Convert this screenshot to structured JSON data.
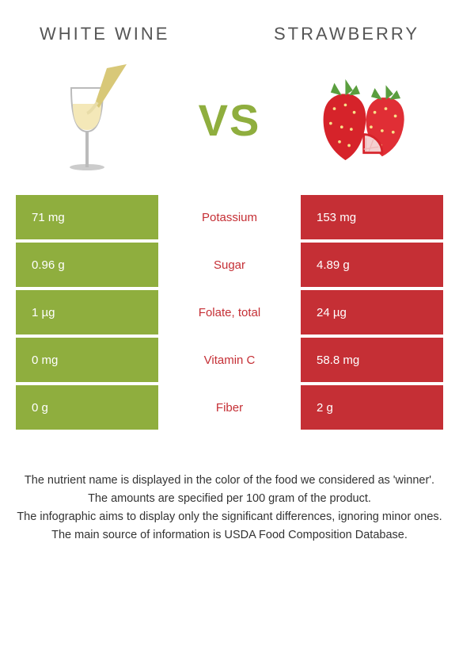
{
  "colors": {
    "left": "#8fae3e",
    "right": "#c52f35",
    "mid_winner_left": "#8fae3e",
    "mid_winner_right": "#c52f35",
    "text": "#333333",
    "header_text": "#555555",
    "white": "#ffffff"
  },
  "header": {
    "left_title": "WHITE WINE",
    "right_title": "STRAWBERRY"
  },
  "vs_label": "VS",
  "vs_color": "#8fae3e",
  "rows": [
    {
      "left": "71 mg",
      "label": "Potassium",
      "right": "153 mg",
      "winner": "right"
    },
    {
      "left": "0.96 g",
      "label": "Sugar",
      "right": "4.89 g",
      "winner": "right"
    },
    {
      "left": "1 µg",
      "label": "Folate, total",
      "right": "24 µg",
      "winner": "right"
    },
    {
      "left": "0 mg",
      "label": "Vitamin C",
      "right": "58.8 mg",
      "winner": "right"
    },
    {
      "left": "0 g",
      "label": "Fiber",
      "right": "2 g",
      "winner": "right"
    }
  ],
  "footer": {
    "line1": "The nutrient name is displayed in the color of the food we considered as 'winner'.",
    "line2": "The amounts are specified per 100 gram of the product.",
    "line3": "The infographic aims to display only the significant differences, ignoring minor ones.",
    "line4": "The main source of information is USDA Food Composition Database."
  }
}
